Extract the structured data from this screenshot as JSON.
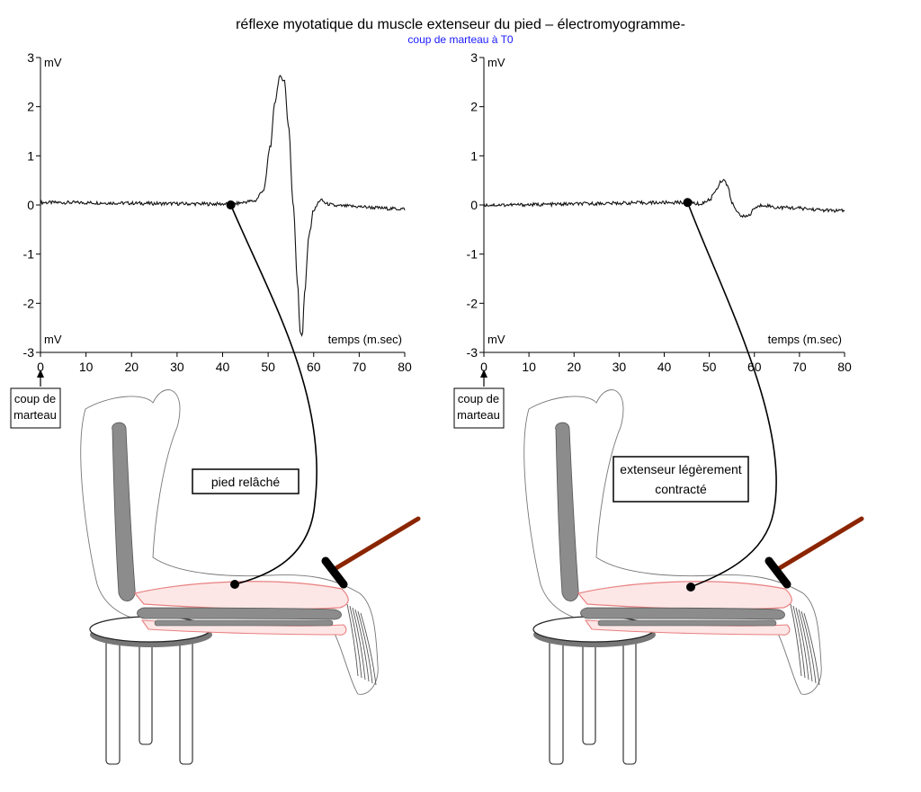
{
  "title": "réflexe myotatique du muscle extenseur du pied – électromyogramme-",
  "subtitle": "coup de marteau à T0",
  "colors": {
    "subtitle": "#1a1aff",
    "trace": "#111111",
    "hammer_handle": "#8b2500",
    "muscle_fill": "#fde6e6",
    "muscle_outline": "#e88080",
    "bone": "#8c8c8c"
  },
  "chart_data": [
    {
      "type": "line",
      "title": "",
      "xlabel": "temps (m.sec)",
      "ylabel": "mV",
      "ylabel_bottom": "mV",
      "xlim": [
        0,
        80
      ],
      "ylim": [
        -3,
        3
      ],
      "x_ticks": [
        0,
        10,
        20,
        30,
        40,
        50,
        60,
        70,
        80
      ],
      "y_ticks": [
        3,
        2,
        1,
        0,
        -1,
        -2,
        -3
      ],
      "y_tick_labels": [
        "3",
        "2",
        "1",
        "0",
        "-1",
        "-2",
        "-3"
      ],
      "grid": false,
      "stimulus_label": "coup de marteau",
      "stimulus_time": 0,
      "electrode_time": 41.8,
      "electrode_value": 0.0,
      "condition_label": "pied relâché",
      "series": [
        {
          "x": [
            0,
            41.8,
            47,
            49,
            50.5,
            51.5,
            52.5,
            53.5,
            54.5,
            55.5,
            56.5,
            57,
            57.5,
            58,
            59,
            60,
            61.5,
            63,
            65,
            80
          ],
          "values": [
            0.05,
            0.02,
            0.08,
            0.3,
            1.2,
            2.1,
            2.6,
            2.55,
            1.6,
            0.0,
            -1.6,
            -2.6,
            -2.65,
            -1.8,
            -0.6,
            -0.1,
            0.1,
            0.02,
            -0.02,
            -0.08
          ]
        }
      ]
    },
    {
      "type": "line",
      "title": "",
      "xlabel": "temps (m.sec)",
      "ylabel": "mV",
      "ylabel_bottom": "mV",
      "xlim": [
        0,
        80
      ],
      "ylim": [
        -3,
        3
      ],
      "x_ticks": [
        0,
        10,
        20,
        30,
        40,
        50,
        60,
        70,
        80
      ],
      "y_ticks": [
        3,
        2,
        1,
        0,
        -1,
        -2,
        -3
      ],
      "y_tick_labels": [
        "3",
        "2",
        "1",
        "0",
        "-1",
        "-2",
        "-3"
      ],
      "grid": false,
      "stimulus_label": "coup de marteau",
      "stimulus_time": 0,
      "electrode_time": 45.2,
      "electrode_value": 0.05,
      "condition_label": "extenseur légèrement contracté",
      "series": [
        {
          "x": [
            0,
            45.2,
            48,
            50,
            51.5,
            52.5,
            53.2,
            54,
            55,
            56,
            57,
            58,
            59,
            60,
            62,
            65,
            80
          ],
          "values": [
            0.0,
            0.05,
            0.02,
            0.1,
            0.3,
            0.48,
            0.52,
            0.4,
            0.05,
            -0.12,
            -0.2,
            -0.25,
            -0.2,
            -0.06,
            0.0,
            -0.05,
            -0.12
          ]
        }
      ]
    }
  ]
}
